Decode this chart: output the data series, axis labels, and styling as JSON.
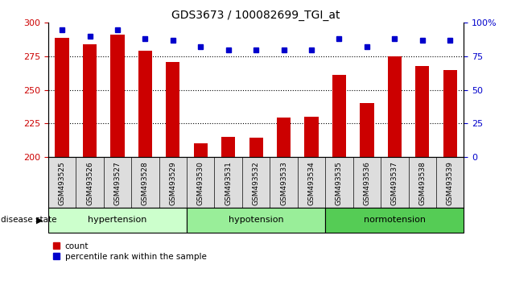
{
  "title": "GDS3673 / 100082699_TGI_at",
  "samples": [
    "GSM493525",
    "GSM493526",
    "GSM493527",
    "GSM493528",
    "GSM493529",
    "GSM493530",
    "GSM493531",
    "GSM493532",
    "GSM493533",
    "GSM493534",
    "GSM493535",
    "GSM493536",
    "GSM493537",
    "GSM493538",
    "GSM493539"
  ],
  "counts": [
    289,
    284,
    291,
    279,
    271,
    210,
    215,
    214,
    229,
    230,
    261,
    240,
    275,
    268,
    265
  ],
  "percentiles": [
    95,
    90,
    95,
    88,
    87,
    82,
    80,
    80,
    80,
    80,
    88,
    82,
    88,
    87,
    87
  ],
  "groups": [
    {
      "label": "hypertension",
      "start": 0,
      "end": 5,
      "color": "#ccffcc"
    },
    {
      "label": "hypotension",
      "start": 5,
      "end": 10,
      "color": "#99ee99"
    },
    {
      "label": "normotension",
      "start": 10,
      "end": 15,
      "color": "#55cc55"
    }
  ],
  "ylim_left": [
    200,
    300
  ],
  "ylim_right": [
    0,
    100
  ],
  "yticks_left": [
    200,
    225,
    250,
    275,
    300
  ],
  "yticks_right": [
    0,
    25,
    50,
    75,
    100
  ],
  "bar_color": "#cc0000",
  "dot_color": "#0000cc",
  "bar_width": 0.5
}
